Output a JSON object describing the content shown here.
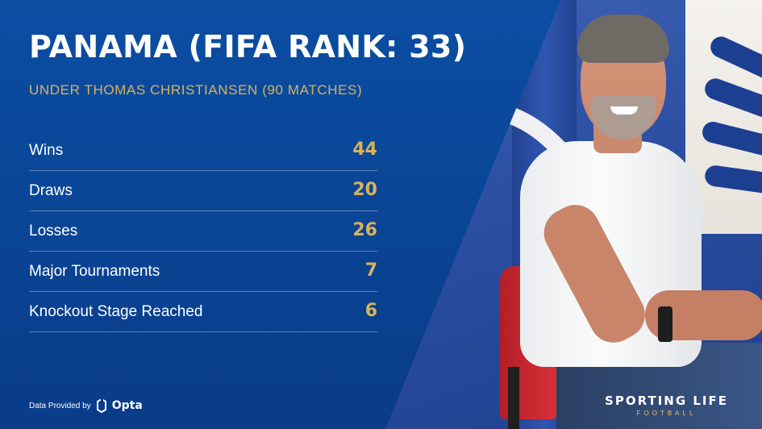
{
  "header": {
    "title": "PANAMA (FIFA RANK: 33)",
    "subtitle": "UNDER THOMAS CHRISTIANSEN (90 MATCHES)"
  },
  "stats": [
    {
      "label": "Wins",
      "value": "44"
    },
    {
      "label": "Draws",
      "value": "20"
    },
    {
      "label": "Losses",
      "value": "26"
    },
    {
      "label": "Major Tournaments",
      "value": "7"
    },
    {
      "label": "Knockout Stage Reached",
      "value": "6"
    }
  ],
  "footer": {
    "credit": "Data Provided by",
    "provider_icon": "opta-logo-icon",
    "provider": "Opta"
  },
  "brand": {
    "name": "SPORTING LIFE",
    "section": "FOOTBALL"
  },
  "colors": {
    "background": "#0a4596",
    "accent": "#d9b25a",
    "text": "#ffffff"
  }
}
